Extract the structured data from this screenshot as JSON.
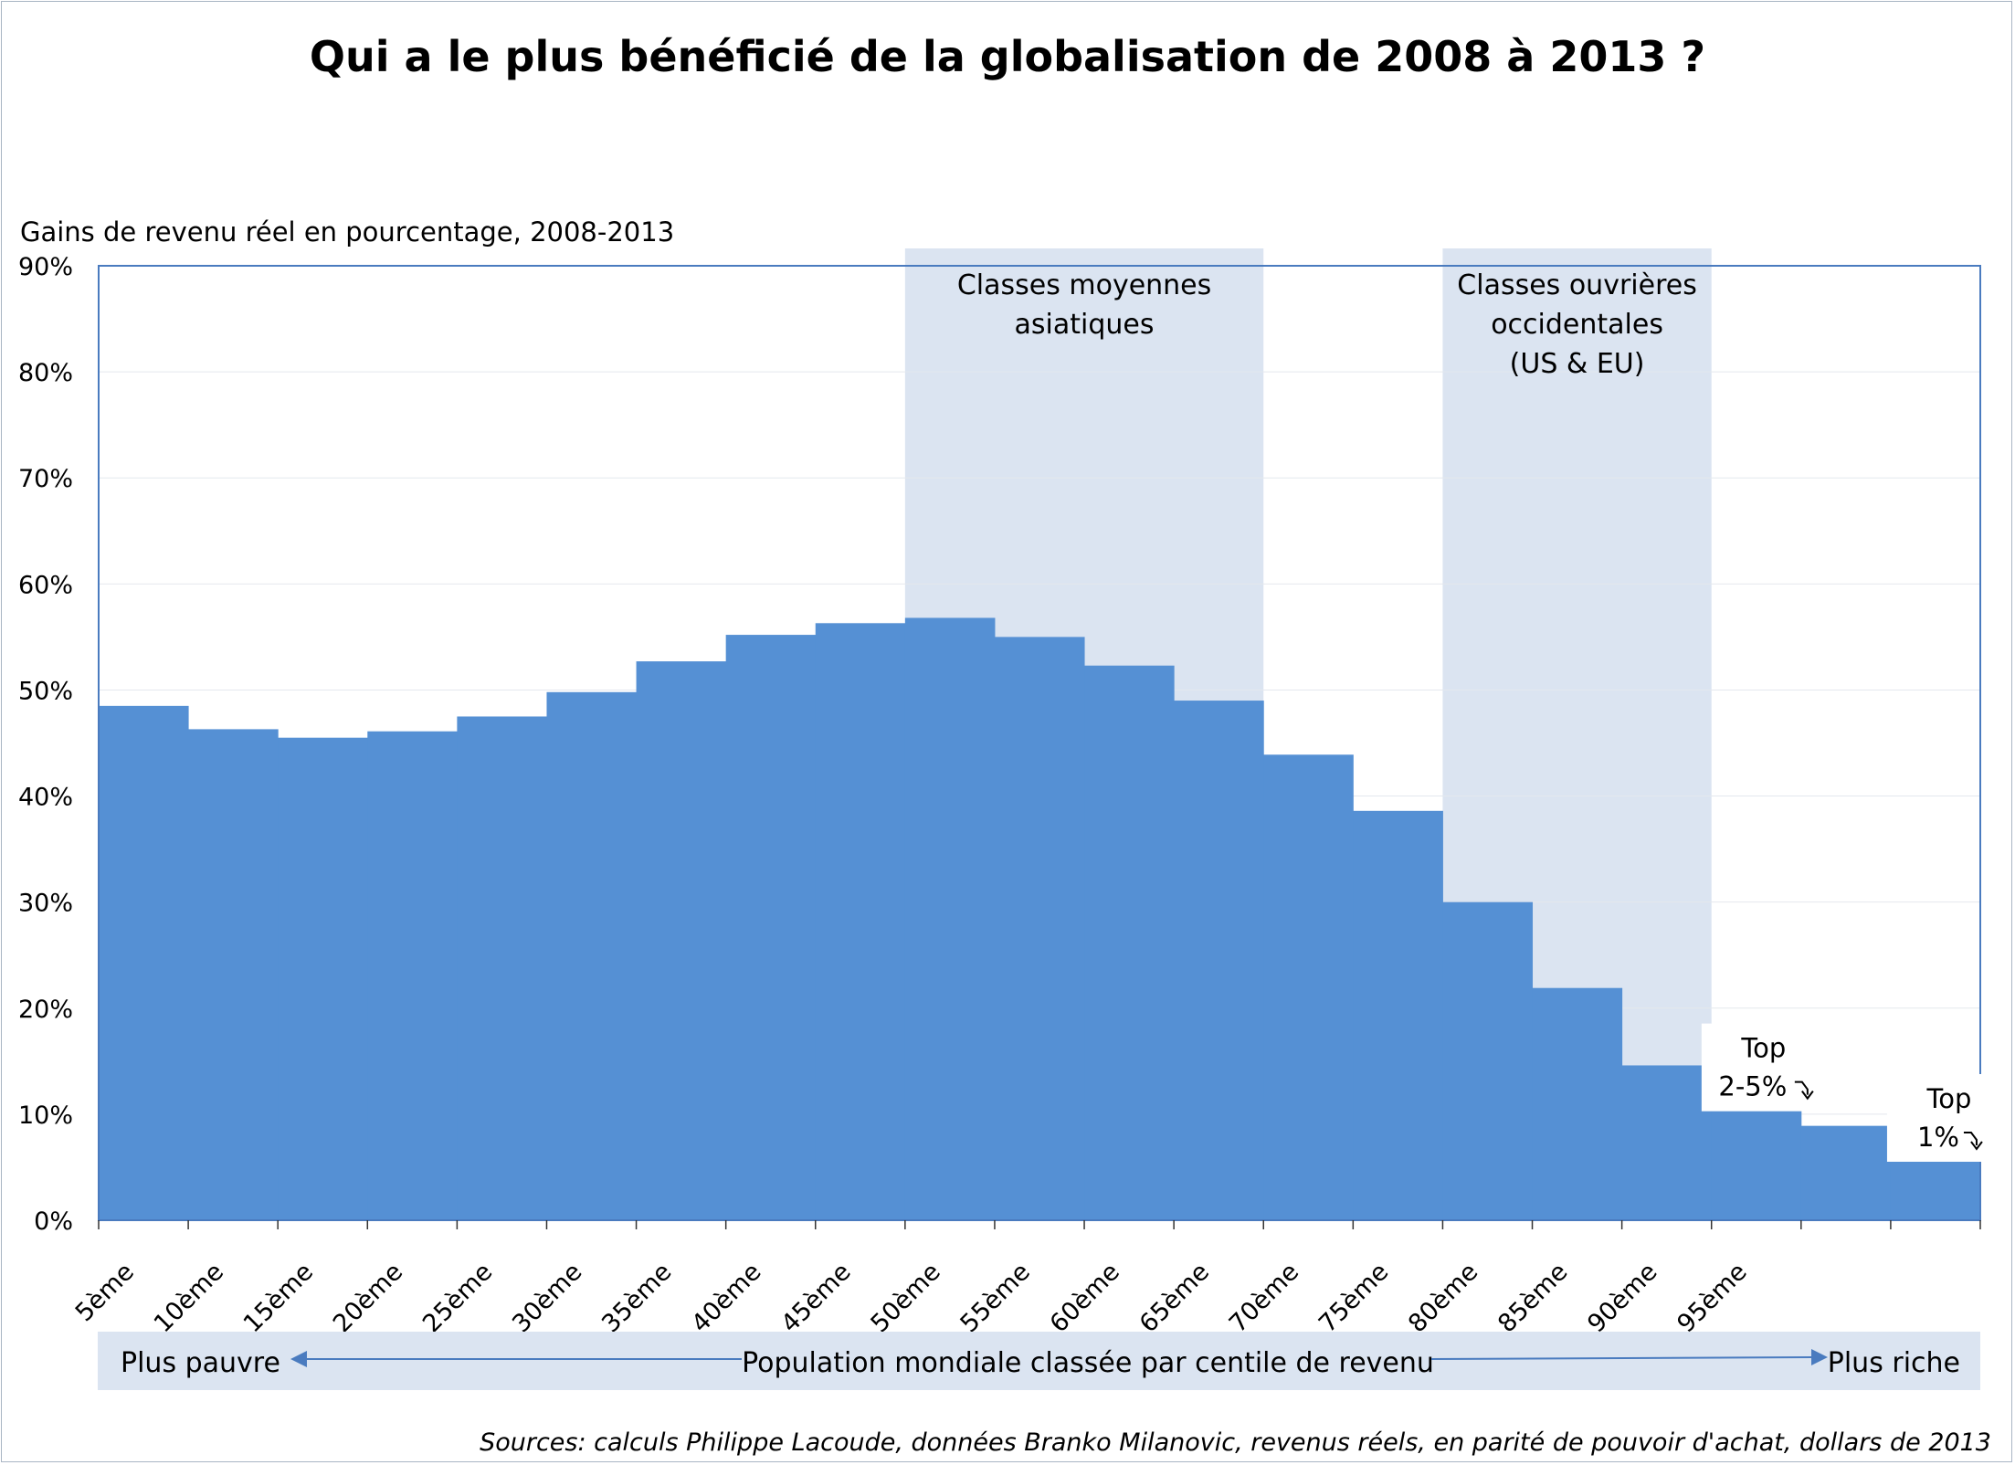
{
  "chart_data": {
    "type": "bar",
    "title": "Qui a le plus bénéficié de la globalisation de 2008 à 2013 ?",
    "ylabel": "Gains de revenu réel en pourcentage, 2008-2013",
    "ylim": [
      0,
      90
    ],
    "yticks": [
      "0%",
      "10%",
      "20%",
      "30%",
      "40%",
      "50%",
      "60%",
      "70%",
      "80%",
      "90%"
    ],
    "grid": true,
    "categories": [
      "5ème",
      "10ème",
      "15ème",
      "20ème",
      "25ème",
      "30ème",
      "35ème",
      "40ème",
      "45ème",
      "50ème",
      "55ème",
      "60ème",
      "65ème",
      "70ème",
      "75ème",
      "80ème",
      "85ème",
      "90ème",
      "95ème",
      "",
      ""
    ],
    "values": [
      48.5,
      46.3,
      45.5,
      46.1,
      47.5,
      49.8,
      52.7,
      55.2,
      56.3,
      56.8,
      55.0,
      52.3,
      49.0,
      43.9,
      38.6,
      30.0,
      21.9,
      14.6,
      11.3,
      8.9,
      5.6
    ],
    "bar_color": "#5590d4",
    "bands": [
      {
        "label": "Classes moyennes asiatiques",
        "lines": [
          "Classes moyennes",
          "asiatiques"
        ],
        "from_index": 9,
        "to_index": 12,
        "color": "#dbe4f1"
      },
      {
        "label": "Classes ouvrières occidentales (US & EU)",
        "lines": [
          "Classes ouvrières",
          "occidentales",
          "(US & EU)"
        ],
        "from_index": 15,
        "to_index": 17,
        "color": "#dbe4f1"
      }
    ],
    "annotations": [
      {
        "lines": [
          "Top",
          "2-5%"
        ],
        "arrow_icon": "hook-arrow-icon",
        "bar_index": 19
      },
      {
        "lines": [
          "Top",
          "1%"
        ],
        "arrow_icon": "hook-arrow-icon",
        "bar_index": 20
      }
    ]
  },
  "axis_bar": {
    "left": "Plus pauvre",
    "center": "Population mondiale classée par centile de revenu",
    "right": "Plus riche",
    "color": "#dbe4f1",
    "arrow_color": "#4a7bbf"
  },
  "source": "Sources: calculs Philippe Lacoude, données Branko Milanovic, revenus réels, en parité de pouvoir d'achat, dollars de 2013"
}
